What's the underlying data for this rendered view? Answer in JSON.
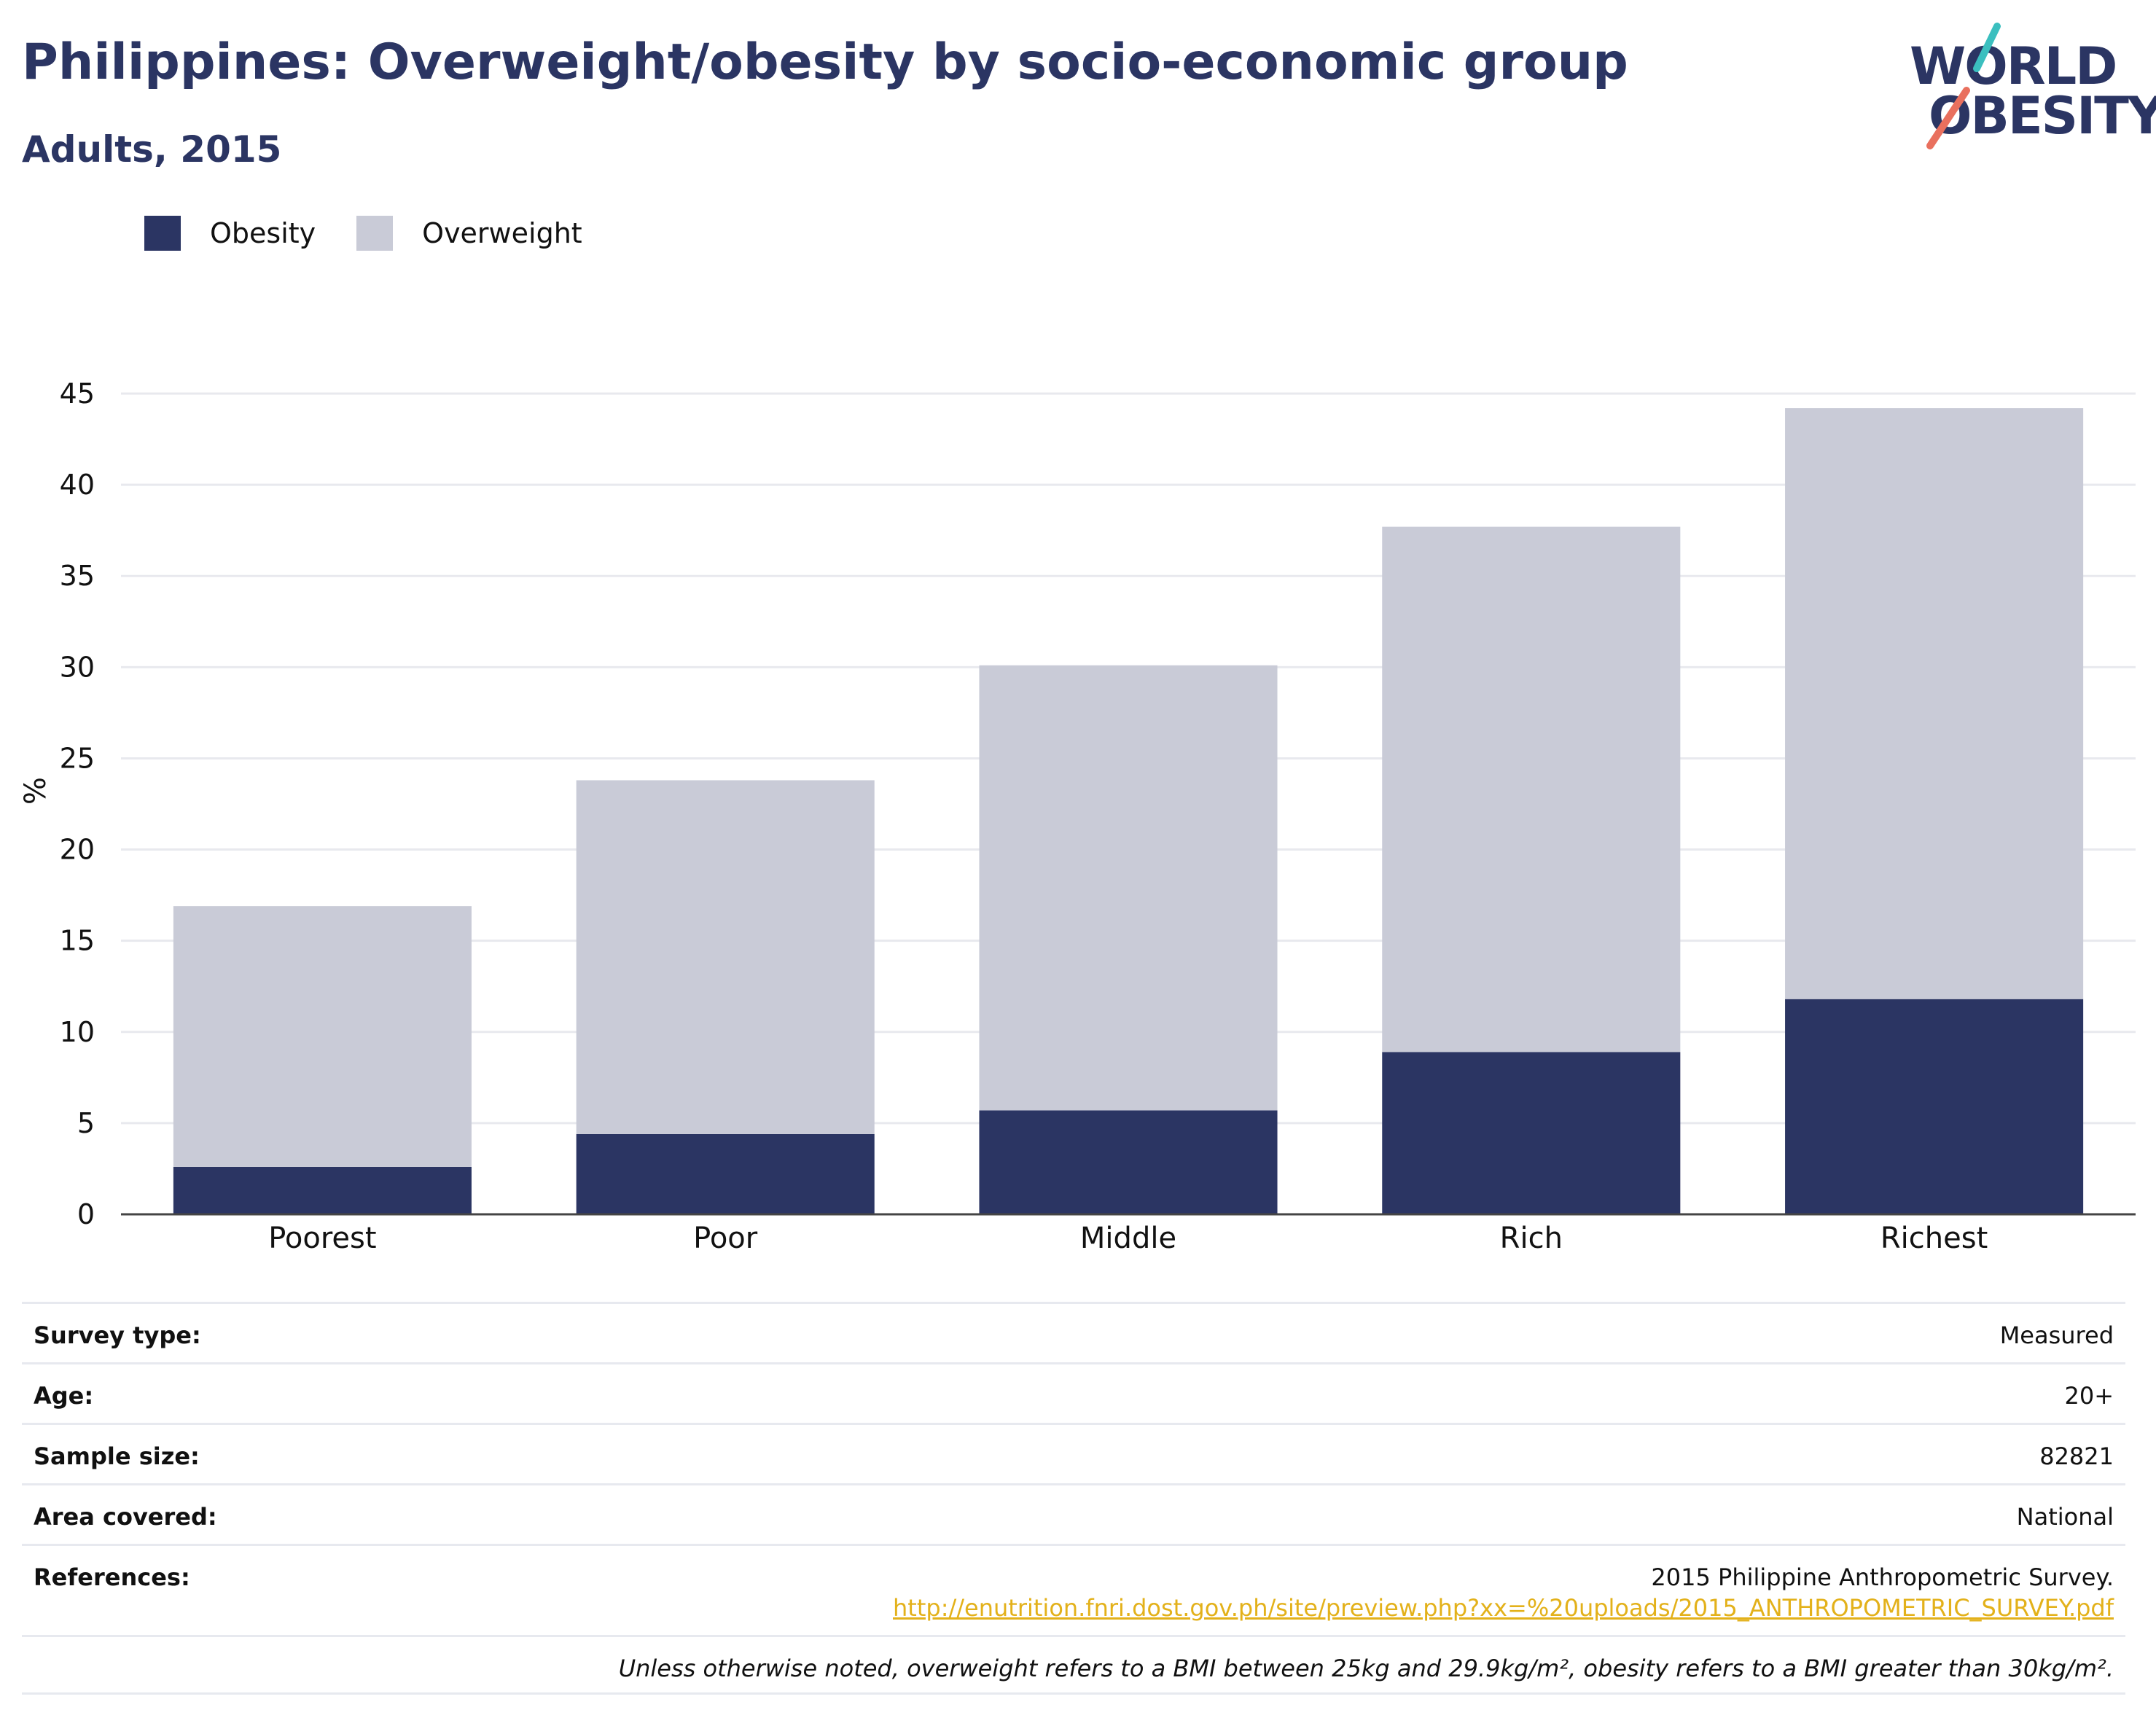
{
  "header": {
    "title": "Philippines: Overweight/obesity by socio-economic group",
    "subtitle": "Adults, 2015"
  },
  "logo": {
    "line1": "WORLD",
    "line2": "OBESITY",
    "icon": "world-obesity-slash-logo"
  },
  "colors": {
    "obesity": "#2b3563",
    "overweight": "#c9cbd7",
    "accent_teal": "#3bbfbf",
    "accent_coral": "#e9705e",
    "link": "#e3b11a"
  },
  "chart_data": {
    "type": "bar",
    "stacked": true,
    "categories": [
      "Poorest",
      "Poor",
      "Middle",
      "Rich",
      "Richest"
    ],
    "series": [
      {
        "name": "Obesity",
        "values": [
          2.6,
          4.4,
          5.7,
          8.9,
          11.8
        ]
      },
      {
        "name": "Overweight",
        "values": [
          14.3,
          19.4,
          24.4,
          28.8,
          32.4
        ]
      }
    ],
    "xlabel": "",
    "ylabel": "%",
    "ylim": [
      0,
      45
    ],
    "yticks": [
      "0",
      "5",
      "10",
      "15",
      "20",
      "25",
      "30",
      "35",
      "40",
      "45"
    ],
    "grid": true,
    "legend_position": "top-left"
  },
  "info": {
    "survey_type": {
      "label": "Survey type:",
      "value": "Measured"
    },
    "age": {
      "label": "Age:",
      "value": "20+"
    },
    "sample_size": {
      "label": "Sample size:",
      "value": "82821"
    },
    "area_covered": {
      "label": "Area covered:",
      "value": "National"
    },
    "references": {
      "label": "References:",
      "value": "2015 Philippine Anthropometric Survey.",
      "link": "http://enutrition.fnri.dost.gov.ph/site/preview.php?xx=%20uploads/2015_ANTHROPOMETRIC_SURVEY.pdf"
    },
    "note": "Unless otherwise noted, overweight refers to a BMI between 25kg and 29.9kg/m², obesity refers to a BMI greater than 30kg/m²."
  }
}
